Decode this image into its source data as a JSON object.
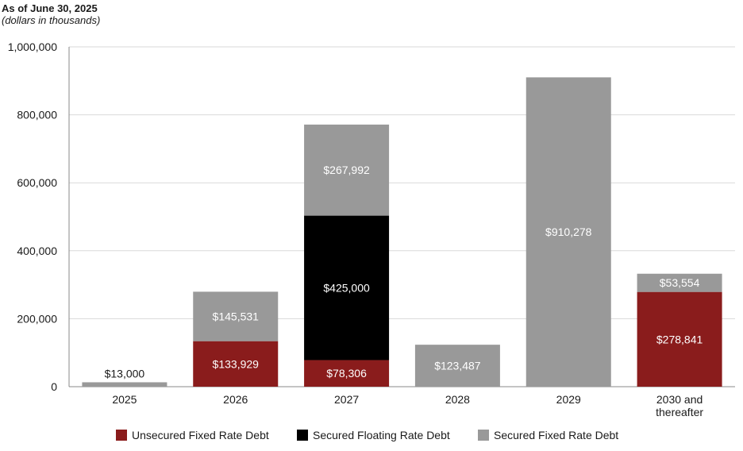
{
  "header": {
    "title": "As of June 30, 2025",
    "subtitle": "(dollars in thousands)"
  },
  "colors": {
    "unsecured_fixed": "#8a1c1c",
    "secured_floating": "#000000",
    "secured_fixed": "#999999",
    "grid": "#d9d9d9",
    "axis": "#888888"
  },
  "chart_data": {
    "type": "bar",
    "stacked": true,
    "categories": [
      "2025",
      "2026",
      "2027",
      "2028",
      "2029",
      "2030 and thereafter"
    ],
    "category_lines": [
      [
        "2025"
      ],
      [
        "2026"
      ],
      [
        "2027"
      ],
      [
        "2028"
      ],
      [
        "2029"
      ],
      [
        "2030 and",
        "thereafter"
      ]
    ],
    "series": [
      {
        "name": "Unsecured Fixed Rate Debt",
        "color": "#8a1c1c",
        "values": [
          0,
          133929,
          78306,
          0,
          0,
          278841
        ],
        "labels": [
          "",
          "$133,929",
          "$78,306",
          "",
          "",
          "$278,841"
        ]
      },
      {
        "name": "Secured Floating Rate Debt",
        "color": "#000000",
        "values": [
          0,
          0,
          425000,
          0,
          0,
          0
        ],
        "labels": [
          "",
          "",
          "$425,000",
          "",
          "",
          ""
        ]
      },
      {
        "name": "Secured Fixed Rate Debt",
        "color": "#999999",
        "values": [
          13000,
          145531,
          267992,
          123487,
          910278,
          53554
        ],
        "labels": [
          "$13,000",
          "$145,531",
          "$267,992",
          "$123,487",
          "$910,278",
          "$53,554"
        ]
      }
    ],
    "ylim": [
      0,
      1000000
    ],
    "yticks": [
      0,
      200000,
      400000,
      600000,
      800000,
      1000000
    ],
    "ytick_labels": [
      "0",
      "200,000",
      "400,000",
      "600,000",
      "800,000",
      "1,000,000"
    ],
    "grid": true,
    "legend_position": "bottom"
  }
}
